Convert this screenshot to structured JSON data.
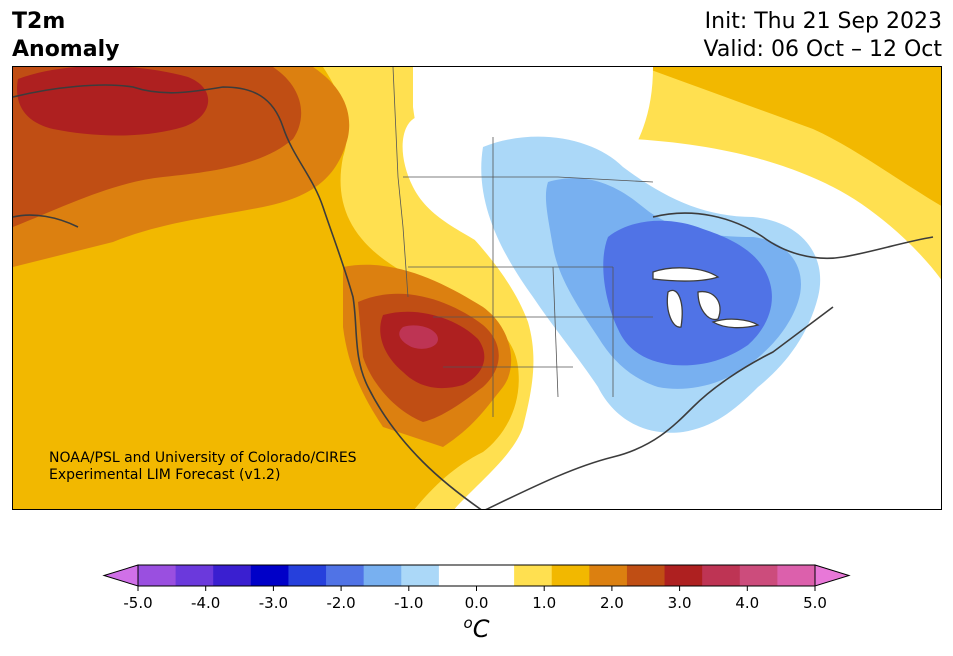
{
  "header": {
    "title_line1": "T2m",
    "title_line2": "Anomaly",
    "init": "Init: Thu 21 Sep 2023",
    "valid": "Valid: 06 Oct – 12 Oct"
  },
  "credit": {
    "line1": "NOAA/PSL and University of Colorado/CIRES",
    "line2": "Experimental LIM Forecast (v1.2)"
  },
  "legend": {
    "unit_base": "C",
    "unit_sup": "o",
    "ticks": [
      "-5.0",
      "-4.0",
      "-3.0",
      "-2.0",
      "-1.0",
      "0.0",
      "1.0",
      "2.0",
      "3.0",
      "4.0",
      "5.0"
    ],
    "colors": [
      "#9a4fe0",
      "#6b39dc",
      "#3a1fd0",
      "#0000c8",
      "#2640dc",
      "#5073e6",
      "#78b0f0",
      "#abd8f8",
      "#ffffff",
      "#ffffff",
      "#ffe050",
      "#f2b800",
      "#dc8010",
      "#c04e14",
      "#ae2020",
      "#be3454",
      "#cc4c7c",
      "#dc60ac"
    ],
    "under_color": "#d070e8",
    "over_color": "#e878d8"
  }
}
